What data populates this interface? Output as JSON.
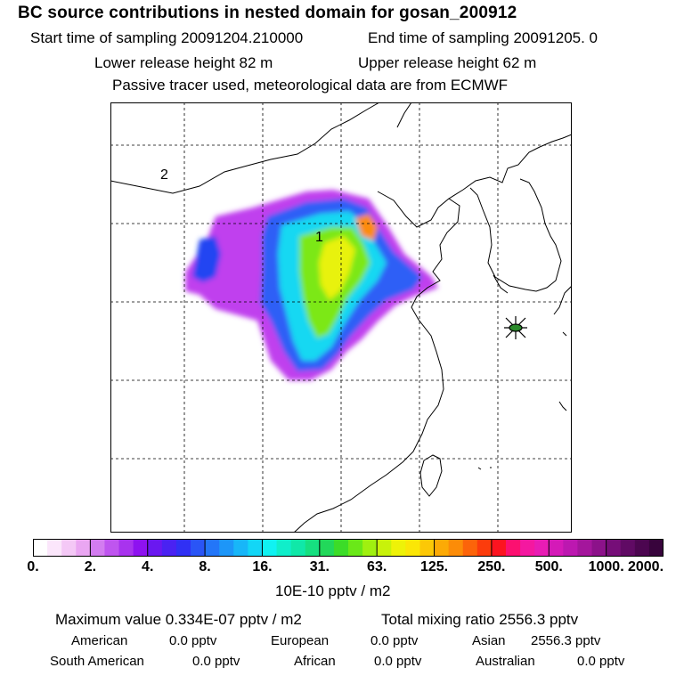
{
  "title": "BC  source contributions in nested domain for gosan_200912",
  "header": {
    "start_label": "Start time of sampling 20091204.210000",
    "end_label": "End time of sampling 20091205.     0",
    "lower_release": "Lower release height   82 m",
    "upper_release": "Upper release height   62 m",
    "tracer_note": "Passive tracer used, meteorological data are from ECMWF"
  },
  "map": {
    "labels": {
      "region_1": "1",
      "region_2": "2"
    },
    "receptor_marker": "star-marker",
    "colors": {
      "land_border": "#000000",
      "grid": "#000000",
      "receptor": "#2a8a2a"
    }
  },
  "colorbar": {
    "ticks": [
      "0.",
      "2.",
      "4.",
      "8.",
      "16.",
      "31.",
      "63.",
      "125.",
      "250.",
      "500.",
      "1000.",
      "2000."
    ],
    "colors": [
      "#ffffff",
      "#fbe6fb",
      "#f4c8f6",
      "#eaa6f2",
      "#d37cf0",
      "#bf55ef",
      "#a833ee",
      "#8e12f0",
      "#6a18f0",
      "#4a22f2",
      "#3030f4",
      "#2a55f6",
      "#2376f8",
      "#1d96f8",
      "#18b6f8",
      "#13d6f6",
      "#10f2f2",
      "#10eeca",
      "#10e8a8",
      "#16e080",
      "#22d85a",
      "#3cdc28",
      "#6ae818",
      "#a0f010",
      "#c8f20a",
      "#eef208",
      "#fbe606",
      "#fcc806",
      "#fcaa06",
      "#fc8c08",
      "#fc640a",
      "#fc3c0c",
      "#fc1420",
      "#fc1070",
      "#f418a0",
      "#e81cb4",
      "#d41ab8",
      "#bc18b0",
      "#a4169c",
      "#8c128a",
      "#760e78",
      "#600a64",
      "#4c0650",
      "#38043c"
    ],
    "units": "10E-10 pptv / m2"
  },
  "summary": {
    "max_value": "Maximum value  0.334E-07 pptv / m2",
    "total_mixing": "Total mixing ratio     2556.3 pptv",
    "american_label": "American",
    "american_value": "0.0 pptv",
    "european_label": "European",
    "european_value": "0.0 pptv",
    "asian_label": "Asian",
    "asian_value": "2556.3 pptv",
    "south_american_label": "South American",
    "south_american_value": "0.0 pptv",
    "african_label": "African",
    "african_value": "0.0 pptv",
    "australian_label": "Australian",
    "australian_value": "0.0 pptv"
  }
}
